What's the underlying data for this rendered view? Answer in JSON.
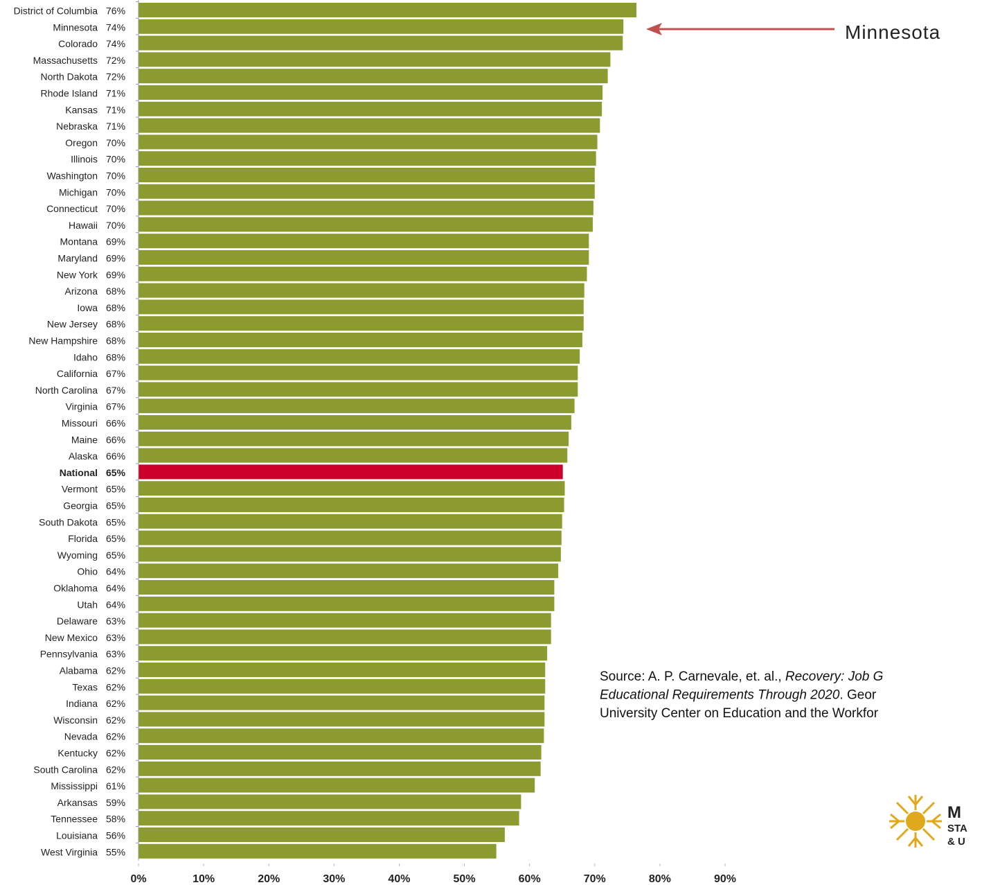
{
  "chart_data": {
    "type": "hbar",
    "categories": [
      "District of Columbia",
      "Minnesota",
      "Colorado",
      "Massachusetts",
      "North Dakota",
      "Rhode Island",
      "Kansas",
      "Nebraska",
      "Oregon",
      "Illinois",
      "Washington",
      "Michigan",
      "Connecticut",
      "Hawaii",
      "Montana",
      "Maryland",
      "New York",
      "Arizona",
      "Iowa",
      "New Jersey",
      "New Hampshire",
      "Idaho",
      "California",
      "North Carolina",
      "Virginia",
      "Missouri",
      "Maine",
      "Alaska",
      "National",
      "Vermont",
      "Georgia",
      "South Dakota",
      "Florida",
      "Wyoming",
      "Ohio",
      "Oklahoma",
      "Utah",
      "Delaware",
      "New Mexico",
      "Pennsylvania",
      "Alabama",
      "Texas",
      "Indiana",
      "Wisconsin",
      "Nevada",
      "Kentucky",
      "South Carolina",
      "Mississippi",
      "Arkansas",
      "Tennessee",
      "Louisiana",
      "West Virginia"
    ],
    "values": [
      76.4,
      74.4,
      74.3,
      72.4,
      72.0,
      71.2,
      71.1,
      70.8,
      70.4,
      70.2,
      70.0,
      70.0,
      69.8,
      69.7,
      69.1,
      69.1,
      68.8,
      68.4,
      68.3,
      68.3,
      68.1,
      67.7,
      67.4,
      67.4,
      66.9,
      66.4,
      66.0,
      65.8,
      65.1,
      65.4,
      65.3,
      65.0,
      64.9,
      64.8,
      64.4,
      63.8,
      63.8,
      63.3,
      63.3,
      62.7,
      62.4,
      62.4,
      62.3,
      62.3,
      62.2,
      61.8,
      61.7,
      60.8,
      58.7,
      58.4,
      56.2,
      54.9
    ],
    "value_labels": [
      "76%",
      "74%",
      "74%",
      "72%",
      "72%",
      "71%",
      "71%",
      "71%",
      "70%",
      "70%",
      "70%",
      "70%",
      "70%",
      "70%",
      "69%",
      "69%",
      "69%",
      "68%",
      "68%",
      "68%",
      "68%",
      "68%",
      "67%",
      "67%",
      "67%",
      "66%",
      "66%",
      "66%",
      "65%",
      "65%",
      "65%",
      "65%",
      "65%",
      "65%",
      "64%",
      "64%",
      "64%",
      "63%",
      "63%",
      "63%",
      "62%",
      "62%",
      "62%",
      "62%",
      "62%",
      "62%",
      "62%",
      "61%",
      "59%",
      "58%",
      "56%",
      "55%"
    ],
    "color": "#8c9b30",
    "highlight_category": "National",
    "highlight_color": "#cc0029",
    "xlim": [
      0,
      90
    ],
    "xticks": [
      {
        "value": 0,
        "label": "0%"
      },
      {
        "value": 10,
        "label": "10%"
      },
      {
        "value": 20,
        "label": "20%"
      },
      {
        "value": 30,
        "label": "30%"
      },
      {
        "value": 40,
        "label": "40%"
      },
      {
        "value": 50,
        "label": "50%"
      },
      {
        "value": 60,
        "label": "60%"
      },
      {
        "value": 70,
        "label": "70%"
      },
      {
        "value": 80,
        "label": "80%"
      },
      {
        "value": 90,
        "label": "90%"
      }
    ],
    "annotations": {
      "arrow_label": "Minnesota",
      "source": [
        [
          {
            "text": "Source: A. P. Carnevale, et. al., ",
            "italic": false
          },
          {
            "text": "Recovery: Job G",
            "italic": true
          }
        ],
        [
          {
            "text": "Educational  Requirements Through 2020",
            "italic": true
          },
          {
            "text": ". Geor",
            "italic": false
          }
        ],
        [
          {
            "text": "University Center  on Education and the Workfor",
            "italic": false
          }
        ]
      ],
      "logo_text": [
        "M",
        "STA",
        "& U"
      ]
    }
  }
}
